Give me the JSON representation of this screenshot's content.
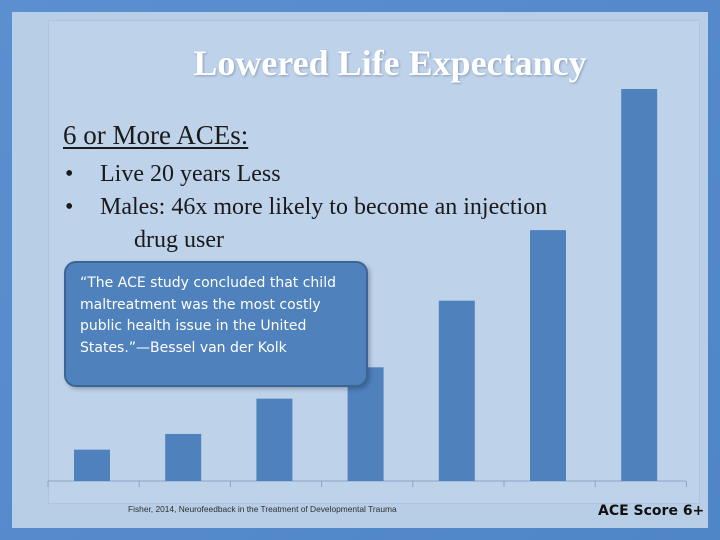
{
  "slide": {
    "title": "Lowered Life Expectancy",
    "subheading": "6 or More ACEs:",
    "bullets": [
      {
        "line1": "Live 20 years Less",
        "line2": ""
      },
      {
        "line1": "Males: 46x more likely to become an  injection",
        "line2": "drug user"
      }
    ],
    "bullet_glyph": "•",
    "quote": "“The ACE study concluded that child maltreatment was the most costly public health issue in the United States.”—Bessel van der Kolk",
    "source": "Fisher, 2014, Neurofeedback in the Treatment of Developmental Trauma",
    "axis_label": "ACE Score 6+"
  },
  "chart_data": {
    "type": "bar",
    "values": [
      0.08,
      0.12,
      0.21,
      0.29,
      0.46,
      0.64,
      1.0
    ],
    "xlabel": "ACE Score 6+",
    "ylabel": "",
    "grid": false
  },
  "colors": {
    "frame": "#5a8fd0",
    "panel": "#bed2ea",
    "bar": "#4f81bd",
    "quote_box": "#4f81bd",
    "title_text": "#ffffff"
  }
}
